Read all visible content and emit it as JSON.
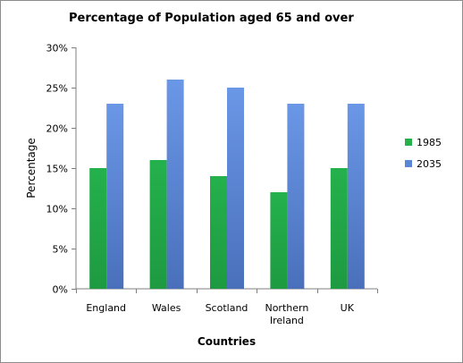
{
  "colors": {
    "series_1985": "#24b14c",
    "series_2035": "#5b86d6",
    "axis": "#7f7f7f"
  },
  "chart_data": {
    "type": "bar",
    "title": "Percentage of Population aged 65 and over",
    "xlabel": "Countries",
    "ylabel": "Percentage",
    "categories": [
      "England",
      "Wales",
      "Scotland",
      "Northern Ireland",
      "UK"
    ],
    "category_lines": [
      [
        "England"
      ],
      [
        "Wales"
      ],
      [
        "Scotland"
      ],
      [
        "Northern",
        "Ireland"
      ],
      [
        "UK"
      ]
    ],
    "series": [
      {
        "name": "1985",
        "values": [
          15,
          16,
          14,
          12,
          15
        ]
      },
      {
        "name": "2035",
        "values": [
          23,
          26,
          25,
          23,
          23
        ]
      }
    ],
    "ylim": [
      0,
      30
    ],
    "yticks": [
      0,
      5,
      10,
      15,
      20,
      25,
      30
    ],
    "ytick_labels": [
      "0%",
      "5%",
      "10%",
      "15%",
      "20%",
      "25%",
      "30%"
    ],
    "grid": false,
    "legend": "right"
  }
}
